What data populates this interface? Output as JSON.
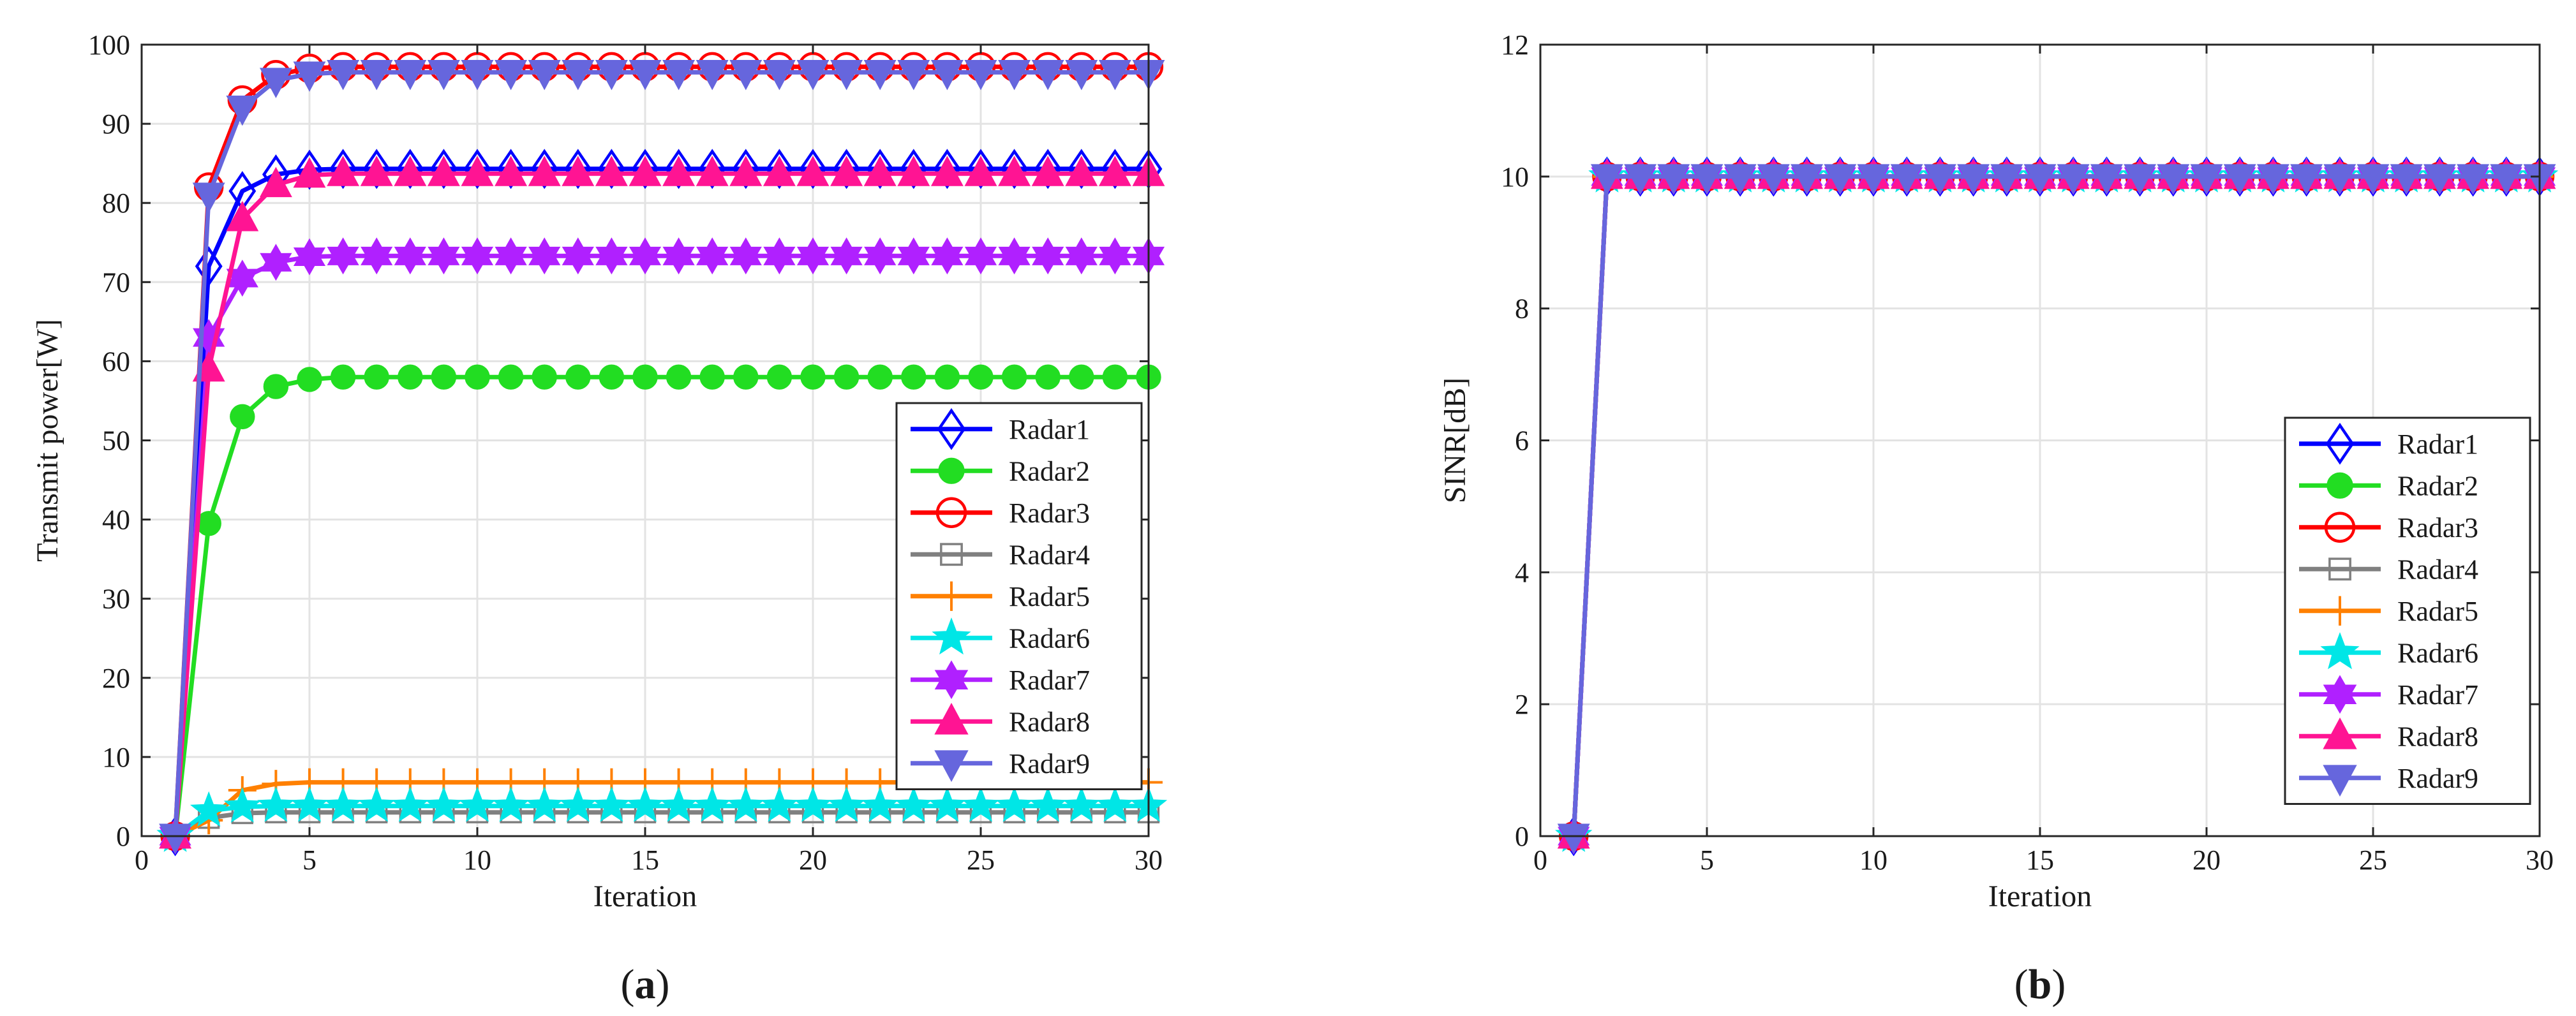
{
  "chart_data": [
    {
      "type": "line",
      "panel_label": "a",
      "xlabel": "Iteration",
      "ylabel": "Transmit power[W]",
      "xlim": [
        0,
        30
      ],
      "ylim": [
        0,
        100
      ],
      "xticks": [
        0,
        5,
        10,
        15,
        20,
        25,
        30
      ],
      "yticks": [
        0,
        10,
        20,
        30,
        40,
        50,
        60,
        70,
        80,
        90,
        100
      ],
      "grid": true,
      "legend_position": "right-center",
      "x": [
        1,
        2,
        3,
        4,
        5,
        6,
        7,
        8,
        9,
        10,
        11,
        12,
        13,
        14,
        15,
        16,
        17,
        18,
        19,
        20,
        21,
        22,
        23,
        24,
        25,
        26,
        27,
        28,
        29,
        30
      ],
      "series": [
        {
          "name": "Radar1",
          "color": "#0000ff",
          "marker": "diamond",
          "values": [
            0,
            72,
            81.5,
            83.6,
            84.2,
            84.3,
            84.3,
            84.3,
            84.3,
            84.3,
            84.3,
            84.3,
            84.3,
            84.3,
            84.3,
            84.3,
            84.3,
            84.3,
            84.3,
            84.3,
            84.3,
            84.3,
            84.3,
            84.3,
            84.3,
            84.3,
            84.3,
            84.3,
            84.3,
            84.3
          ]
        },
        {
          "name": "Radar2",
          "color": "#22dd22",
          "marker": "circle-filled",
          "values": [
            0,
            39.5,
            53,
            56.8,
            57.7,
            58,
            58,
            58,
            58,
            58,
            58,
            58,
            58,
            58,
            58,
            58,
            58,
            58,
            58,
            58,
            58,
            58,
            58,
            58,
            58,
            58,
            58,
            58,
            58,
            58
          ]
        },
        {
          "name": "Radar3",
          "color": "#ff0000",
          "marker": "circle-open",
          "values": [
            0,
            82,
            93,
            96.2,
            97,
            97.2,
            97.2,
            97.2,
            97.2,
            97.2,
            97.2,
            97.2,
            97.2,
            97.2,
            97.2,
            97.2,
            97.2,
            97.2,
            97.2,
            97.2,
            97.2,
            97.2,
            97.2,
            97.2,
            97.2,
            97.2,
            97.2,
            97.2,
            97.2,
            97.2
          ]
        },
        {
          "name": "Radar4",
          "color": "#808080",
          "marker": "square",
          "values": [
            0,
            2.3,
            2.9,
            3,
            3,
            3,
            3,
            3,
            3,
            3,
            3,
            3,
            3,
            3,
            3,
            3,
            3,
            3,
            3,
            3,
            3,
            3,
            3,
            3,
            3,
            3,
            3,
            3,
            3,
            3
          ]
        },
        {
          "name": "Radar5",
          "color": "#ff8000",
          "marker": "plus",
          "values": [
            0,
            2,
            5.8,
            6.6,
            6.8,
            6.8,
            6.8,
            6.8,
            6.8,
            6.8,
            6.8,
            6.8,
            6.8,
            6.8,
            6.8,
            6.8,
            6.8,
            6.8,
            6.8,
            6.8,
            6.8,
            6.8,
            6.8,
            6.8,
            6.8,
            6.8,
            6.8,
            6.8,
            6.8,
            6.8
          ]
        },
        {
          "name": "Radar6",
          "color": "#00e6e6",
          "marker": "star",
          "values": [
            0,
            3.2,
            3.7,
            3.8,
            3.8,
            3.8,
            3.8,
            3.8,
            3.8,
            3.8,
            3.8,
            3.8,
            3.8,
            3.8,
            3.8,
            3.8,
            3.8,
            3.8,
            3.8,
            3.8,
            3.8,
            3.8,
            3.8,
            3.8,
            3.8,
            3.8,
            3.8,
            3.8,
            3.8,
            3.8
          ]
        },
        {
          "name": "Radar7",
          "color": "#b020ff",
          "marker": "hexagram",
          "values": [
            0,
            63,
            70.5,
            72.5,
            73.2,
            73.3,
            73.3,
            73.3,
            73.3,
            73.3,
            73.3,
            73.3,
            73.3,
            73.3,
            73.3,
            73.3,
            73.3,
            73.3,
            73.3,
            73.3,
            73.3,
            73.3,
            73.3,
            73.3,
            73.3,
            73.3,
            73.3,
            73.3,
            73.3,
            73.3
          ]
        },
        {
          "name": "Radar8",
          "color": "#ff1493",
          "marker": "triangle-up",
          "values": [
            0,
            59,
            78,
            82.3,
            83.5,
            83.7,
            83.7,
            83.7,
            83.7,
            83.7,
            83.7,
            83.7,
            83.7,
            83.7,
            83.7,
            83.7,
            83.7,
            83.7,
            83.7,
            83.7,
            83.7,
            83.7,
            83.7,
            83.7,
            83.7,
            83.7,
            83.7,
            83.7,
            83.7,
            83.7
          ]
        },
        {
          "name": "Radar9",
          "color": "#6666dd",
          "marker": "triangle-down",
          "values": [
            0,
            81,
            92,
            95.5,
            96.3,
            96.5,
            96.5,
            96.5,
            96.5,
            96.5,
            96.5,
            96.5,
            96.5,
            96.5,
            96.5,
            96.5,
            96.5,
            96.5,
            96.5,
            96.5,
            96.5,
            96.5,
            96.5,
            96.5,
            96.5,
            96.5,
            96.5,
            96.5,
            96.5,
            96.5
          ]
        }
      ]
    },
    {
      "type": "line",
      "panel_label": "b",
      "xlabel": "Iteration",
      "ylabel": "SINR[dB]",
      "xlim": [
        0,
        30
      ],
      "ylim": [
        0,
        12
      ],
      "xticks": [
        0,
        5,
        10,
        15,
        20,
        25,
        30
      ],
      "yticks": [
        0,
        2,
        4,
        6,
        8,
        10,
        12
      ],
      "grid": true,
      "legend_position": "right-lower",
      "x": [
        1,
        2,
        3,
        4,
        5,
        6,
        7,
        8,
        9,
        10,
        11,
        12,
        13,
        14,
        15,
        16,
        17,
        18,
        19,
        20,
        21,
        22,
        23,
        24,
        25,
        26,
        27,
        28,
        29,
        30
      ],
      "series": [
        {
          "name": "Radar1",
          "color": "#0000ff",
          "marker": "diamond",
          "values": [
            0,
            10,
            10,
            10,
            10,
            10,
            10,
            10,
            10,
            10,
            10,
            10,
            10,
            10,
            10,
            10,
            10,
            10,
            10,
            10,
            10,
            10,
            10,
            10,
            10,
            10,
            10,
            10,
            10,
            10
          ]
        },
        {
          "name": "Radar2",
          "color": "#22dd22",
          "marker": "circle-filled",
          "values": [
            0,
            10,
            10,
            10,
            10,
            10,
            10,
            10,
            10,
            10,
            10,
            10,
            10,
            10,
            10,
            10,
            10,
            10,
            10,
            10,
            10,
            10,
            10,
            10,
            10,
            10,
            10,
            10,
            10,
            10
          ]
        },
        {
          "name": "Radar3",
          "color": "#ff0000",
          "marker": "circle-open",
          "values": [
            0,
            10,
            10,
            10,
            10,
            10,
            10,
            10,
            10,
            10,
            10,
            10,
            10,
            10,
            10,
            10,
            10,
            10,
            10,
            10,
            10,
            10,
            10,
            10,
            10,
            10,
            10,
            10,
            10,
            10
          ]
        },
        {
          "name": "Radar4",
          "color": "#808080",
          "marker": "square",
          "values": [
            0,
            10,
            10,
            10,
            10,
            10,
            10,
            10,
            10,
            10,
            10,
            10,
            10,
            10,
            10,
            10,
            10,
            10,
            10,
            10,
            10,
            10,
            10,
            10,
            10,
            10,
            10,
            10,
            10,
            10
          ]
        },
        {
          "name": "Radar5",
          "color": "#ff8000",
          "marker": "plus",
          "values": [
            0,
            10,
            10,
            10,
            10,
            10,
            10,
            10,
            10,
            10,
            10,
            10,
            10,
            10,
            10,
            10,
            10,
            10,
            10,
            10,
            10,
            10,
            10,
            10,
            10,
            10,
            10,
            10,
            10,
            10
          ]
        },
        {
          "name": "Radar6",
          "color": "#00e6e6",
          "marker": "star",
          "values": [
            0,
            10,
            10,
            10,
            10,
            10,
            10,
            10,
            10,
            10,
            10,
            10,
            10,
            10,
            10,
            10,
            10,
            10,
            10,
            10,
            10,
            10,
            10,
            10,
            10,
            10,
            10,
            10,
            10,
            10
          ]
        },
        {
          "name": "Radar7",
          "color": "#b020ff",
          "marker": "hexagram",
          "values": [
            0,
            10,
            10,
            10,
            10,
            10,
            10,
            10,
            10,
            10,
            10,
            10,
            10,
            10,
            10,
            10,
            10,
            10,
            10,
            10,
            10,
            10,
            10,
            10,
            10,
            10,
            10,
            10,
            10,
            10
          ]
        },
        {
          "name": "Radar8",
          "color": "#ff1493",
          "marker": "triangle-up",
          "values": [
            0,
            10,
            10,
            10,
            10,
            10,
            10,
            10,
            10,
            10,
            10,
            10,
            10,
            10,
            10,
            10,
            10,
            10,
            10,
            10,
            10,
            10,
            10,
            10,
            10,
            10,
            10,
            10,
            10,
            10
          ]
        },
        {
          "name": "Radar9",
          "color": "#6666dd",
          "marker": "triangle-down",
          "values": [
            0,
            10,
            10,
            10,
            10,
            10,
            10,
            10,
            10,
            10,
            10,
            10,
            10,
            10,
            10,
            10,
            10,
            10,
            10,
            10,
            10,
            10,
            10,
            10,
            10,
            10,
            10,
            10,
            10,
            10
          ]
        }
      ]
    }
  ]
}
